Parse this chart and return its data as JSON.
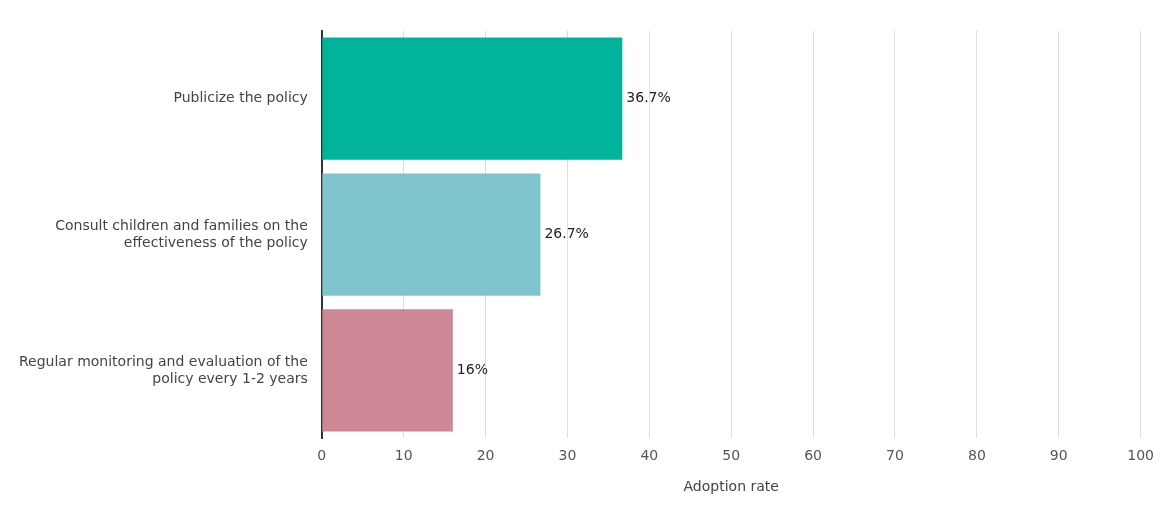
{
  "chart_data": {
    "type": "bar",
    "orientation": "horizontal",
    "xlabel": "Adoption rate",
    "categories": [
      "Publicize the policy",
      "Consult children and families on the effectiveness of the policy",
      "Regular monitoring and evaluation of the policy every 1-2 years"
    ],
    "values": [
      36.7,
      26.7,
      16
    ],
    "colors": [
      "#00b39b",
      "#7fc4cc",
      "#cc8895"
    ],
    "value_labels": [
      "36.7%",
      "26.7%",
      "16%"
    ],
    "xlim": [
      0,
      100
    ],
    "xticks": [
      0,
      10,
      20,
      30,
      40,
      50,
      60,
      70,
      80,
      90,
      100
    ],
    "grid": "x",
    "legend": false
  }
}
